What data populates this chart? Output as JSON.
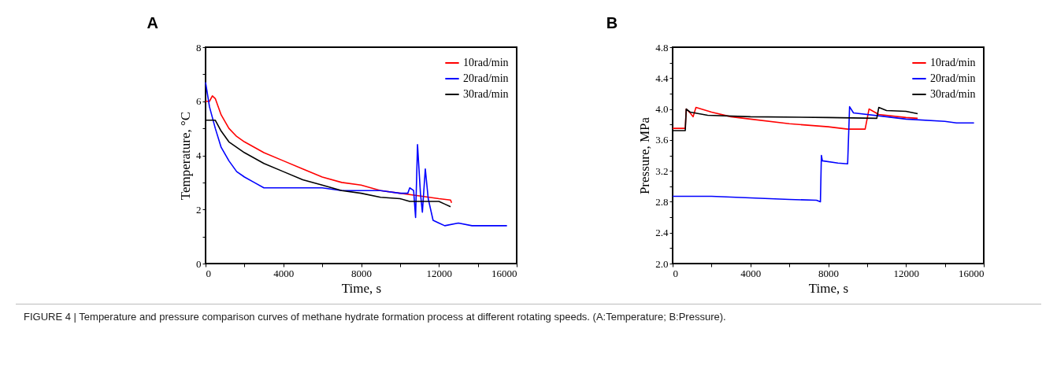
{
  "chart_data": [
    {
      "type": "line",
      "title": "A",
      "xlabel": "Time, s",
      "ylabel": "Temperature, °C",
      "xlim": [
        0,
        16000
      ],
      "ylim": [
        0,
        8
      ],
      "xticks": [
        0,
        {
          "value": 2000,
          "label": null
        },
        4000,
        {
          "value": 6000,
          "label": null
        },
        8000,
        {
          "value": 10000,
          "label": null
        },
        12000,
        {
          "value": 14000,
          "label": null
        },
        16000
      ],
      "yticks": [
        0,
        {
          "value": 1,
          "label": null
        },
        2,
        {
          "value": 3,
          "label": null
        },
        4,
        {
          "value": 5,
          "label": null
        },
        6,
        {
          "value": 7,
          "label": null
        },
        8
      ],
      "grid": false,
      "legend": "top right",
      "line_style": "solid",
      "marker": "none",
      "series": [
        {
          "name": "10rad/min",
          "color": "#ff0000",
          "x": [
            0,
            200,
            350,
            500,
            800,
            1200,
            1600,
            2000,
            3000,
            4000,
            5000,
            6000,
            7000,
            8000,
            9000,
            10000,
            11000,
            12000,
            12600,
            12650
          ],
          "values": [
            6.0,
            6.0,
            6.2,
            6.1,
            5.5,
            5.0,
            4.7,
            4.5,
            4.1,
            3.8,
            3.5,
            3.2,
            3.0,
            2.9,
            2.7,
            2.6,
            2.5,
            2.4,
            2.35,
            2.25
          ]
        },
        {
          "name": "20rad/min",
          "color": "#0000ff",
          "x": [
            0,
            200,
            500,
            800,
            1200,
            1600,
            2000,
            2500,
            3000,
            4000,
            6000,
            7000,
            9000,
            10000,
            10400,
            10500,
            10700,
            10800,
            10900,
            11050,
            11150,
            11300,
            11450,
            11700,
            12000,
            12300,
            13000,
            13700,
            15500
          ],
          "values": [
            6.7,
            5.8,
            5.0,
            4.3,
            3.8,
            3.4,
            3.2,
            3.0,
            2.8,
            2.8,
            2.8,
            2.7,
            2.7,
            2.6,
            2.6,
            2.8,
            2.7,
            1.7,
            4.4,
            2.6,
            1.9,
            3.5,
            2.4,
            1.6,
            1.5,
            1.4,
            1.5,
            1.4,
            1.4
          ]
        },
        {
          "name": "30rad/min",
          "color": "#000000",
          "x": [
            0,
            500,
            800,
            1200,
            2000,
            3000,
            4000,
            5000,
            6000,
            7000,
            8000,
            9000,
            10000,
            10500,
            12000,
            12300,
            12600
          ],
          "values": [
            5.3,
            5.3,
            4.9,
            4.5,
            4.1,
            3.7,
            3.4,
            3.1,
            2.9,
            2.7,
            2.6,
            2.45,
            2.4,
            2.3,
            2.3,
            2.2,
            2.1
          ]
        }
      ]
    },
    {
      "type": "line",
      "title": "B",
      "xlabel": "Time, s",
      "ylabel": "Pressure, MPa",
      "xlim": [
        0,
        16000
      ],
      "ylim": [
        2,
        4.8
      ],
      "xticks": [
        0,
        {
          "value": 2000,
          "label": null
        },
        4000,
        {
          "value": 6000,
          "label": null
        },
        8000,
        {
          "value": 10000,
          "label": null
        },
        12000,
        {
          "value": 14000,
          "label": null
        },
        16000
      ],
      "yticks": [
        {
          "value": 2,
          "label": "2.0"
        },
        {
          "value": 2.2,
          "label": null
        },
        2.4,
        {
          "value": 2.6,
          "label": null
        },
        2.8,
        {
          "value": 3,
          "label": null
        },
        3.2,
        {
          "value": 3.4,
          "label": null
        },
        3.6,
        {
          "value": 3.8,
          "label": null
        },
        {
          "value": 4,
          "label": "4.0"
        },
        {
          "value": 4.2,
          "label": null
        },
        4.4,
        {
          "value": 4.6,
          "label": null
        },
        4.8
      ],
      "grid": false,
      "legend": "top right",
      "line_style": "solid",
      "marker": "none",
      "series": [
        {
          "name": "10rad/min",
          "color": "#ff0000",
          "x": [
            0,
            650,
            700,
            900,
            1050,
            1200,
            2000,
            3000,
            4000,
            6000,
            8000,
            9000,
            9900,
            10100,
            10600,
            12000,
            12600
          ],
          "values": [
            3.75,
            3.75,
            4.0,
            3.95,
            3.9,
            4.02,
            3.96,
            3.9,
            3.87,
            3.81,
            3.77,
            3.74,
            3.74,
            4.0,
            3.93,
            3.89,
            3.88
          ]
        },
        {
          "name": "20rad/min",
          "color": "#0000ff",
          "x": [
            0,
            2000,
            4000,
            6000,
            7400,
            7600,
            7650,
            7700,
            8500,
            9000,
            9100,
            9300,
            11000,
            12000,
            14000,
            14600,
            15500
          ],
          "values": [
            2.87,
            2.87,
            2.85,
            2.83,
            2.82,
            2.8,
            3.4,
            3.33,
            3.3,
            3.29,
            4.03,
            3.95,
            3.9,
            3.87,
            3.84,
            3.82,
            3.82
          ]
        },
        {
          "name": "30rad/min",
          "color": "#000000",
          "x": [
            0,
            650,
            700,
            900,
            1800,
            4000,
            8000,
            10500,
            10600,
            11000,
            12000,
            12600
          ],
          "values": [
            3.72,
            3.72,
            4.0,
            3.96,
            3.92,
            3.9,
            3.89,
            3.88,
            4.02,
            3.98,
            3.97,
            3.94
          ]
        }
      ],
      "annotations": [
        "FIGURE 4 | Temperature and pressure comparison curves of methane hydrate formation process at different rotating speeds. (A:Temperature; B:Pressure)."
      ]
    }
  ]
}
